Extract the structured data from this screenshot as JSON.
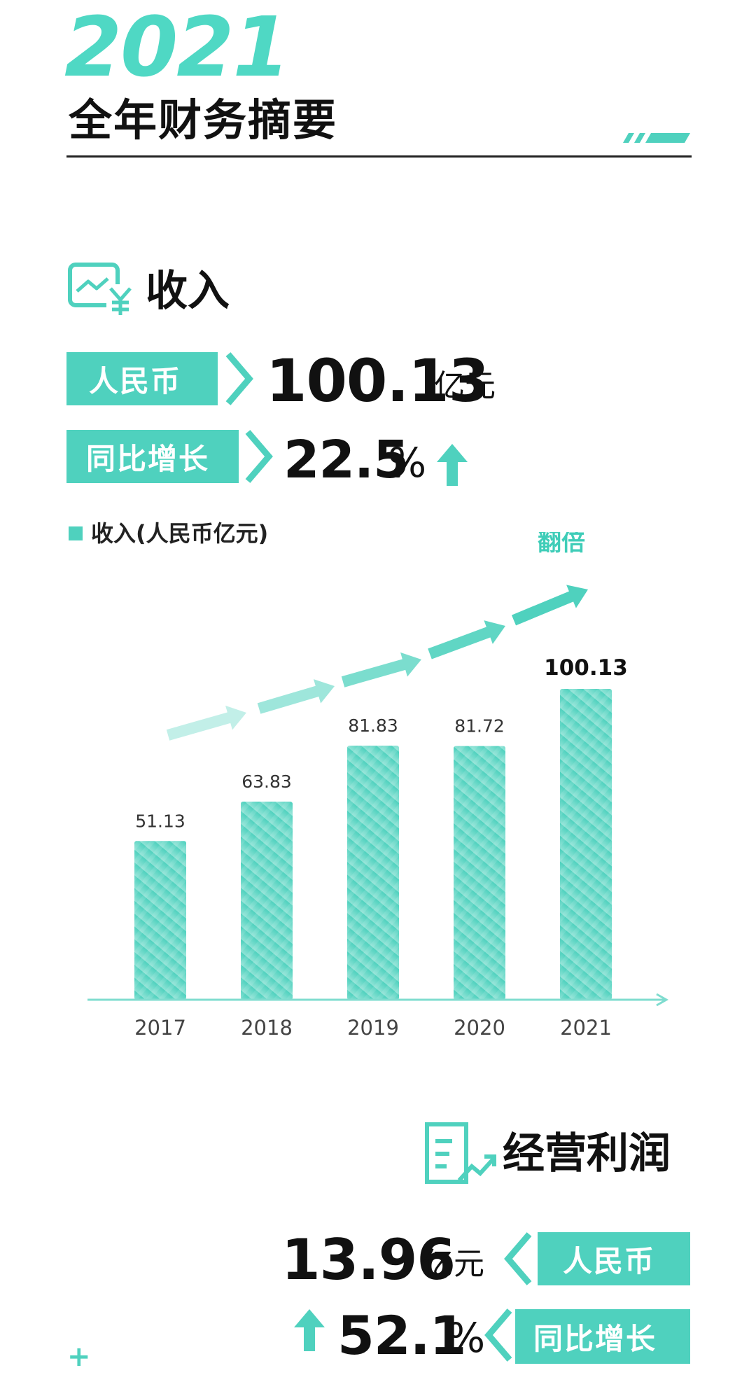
{
  "header": {
    "year": "2021",
    "title": "全年财务摘要"
  },
  "revenue": {
    "section_title": "收入",
    "currency_label": "人民币",
    "value": "100.13",
    "unit": "亿元",
    "yoy_label": "同比增长",
    "yoy_value": "22.5",
    "yoy_unit": "%"
  },
  "chart_data": {
    "type": "bar",
    "legend": "收入(人民币亿元)",
    "annotation": "翻倍",
    "categories": [
      "2017",
      "2018",
      "2019",
      "2020",
      "2021"
    ],
    "series": [
      {
        "name": "收入(人民币亿元)",
        "values": [
          51.13,
          63.83,
          81.83,
          81.72,
          100.13
        ]
      }
    ],
    "data_labels": [
      "51.13",
      "63.83",
      "81.83",
      "81.72",
      "100.13"
    ],
    "ylim": [
      0,
      100.13
    ],
    "grid": false,
    "colors": {
      "bar": "#4fd1be",
      "axis": "#7fdccf",
      "arrow": "#4fd1be"
    }
  },
  "operating_profit": {
    "section_title": "经营利润",
    "value": "13.96",
    "unit": "亿元",
    "currency_label": "人民币",
    "yoy_label": "同比增长",
    "yoy_value": "52.1",
    "yoy_unit": "%"
  },
  "footer": {
    "plus_symbol": "+"
  },
  "colors": {
    "accent": "#4fd1be",
    "text": "#111111"
  }
}
